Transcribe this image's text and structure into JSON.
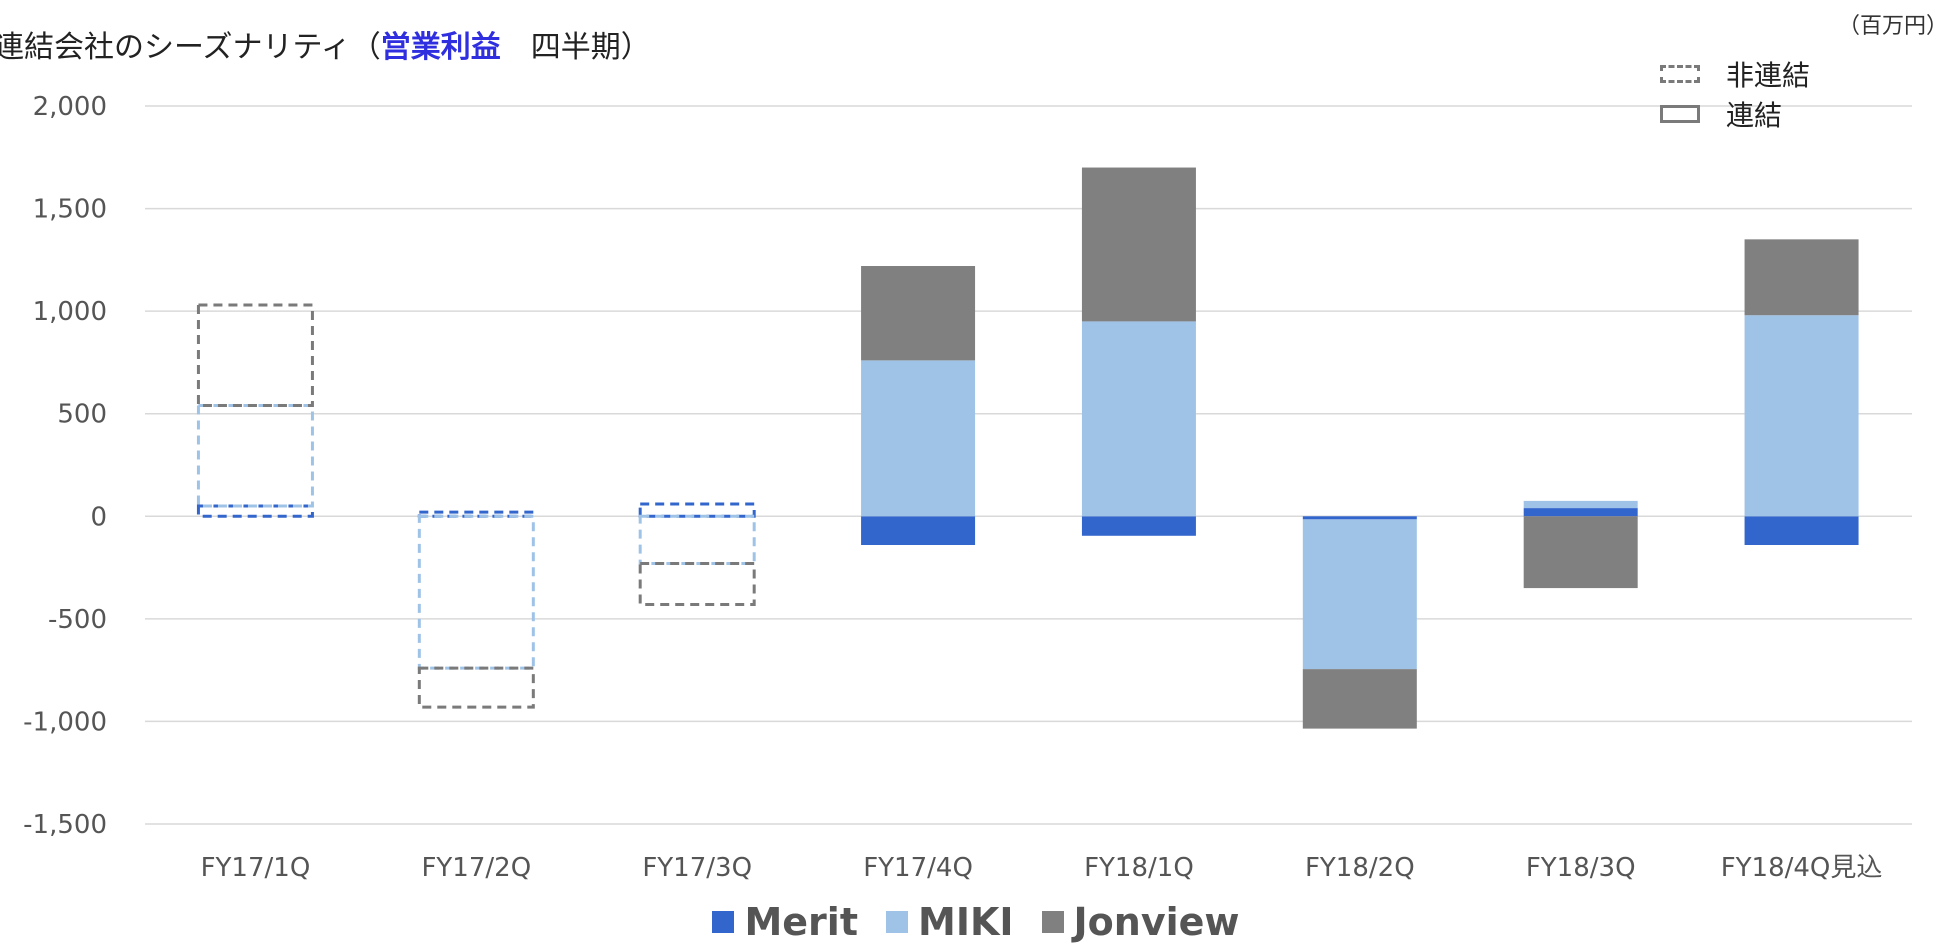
{
  "header": {
    "title_pre": "連結会社のシーズナリティ（",
    "title_highlight": "営業利益",
    "title_post": "　四半期）",
    "unit": "（百万円）"
  },
  "legend_box": {
    "nonconsolidated": "非連結",
    "consolidated": "連結"
  },
  "chart_data": {
    "type": "bar",
    "stacked": true,
    "categories": [
      "FY17/1Q",
      "FY17/2Q",
      "FY17/3Q",
      "FY17/4Q",
      "FY18/1Q",
      "FY18/2Q",
      "FY18/3Q",
      "FY18/4Q見込"
    ],
    "ylim": [
      -1500,
      2000
    ],
    "yticks": [
      2000,
      1500,
      1000,
      500,
      0,
      -500,
      -1000,
      -1500
    ],
    "ytick_labels": [
      "2,000",
      "1,500",
      "1,000",
      "500",
      "0",
      "-500",
      "-1,000",
      "-1,500"
    ],
    "grid": true,
    "legend_position": "bottom",
    "consolidated_from_index": 3,
    "colors": {
      "Merit": "#3366cc",
      "MIKI": "#9fc3e7",
      "Jonview": "#808080",
      "box": "#7a7a7a"
    },
    "series": [
      {
        "name": "Merit",
        "values": [
          50,
          20,
          60,
          -140,
          -95,
          -15,
          40,
          -140
        ]
      },
      {
        "name": "MIKI",
        "values": [
          490,
          -740,
          -230,
          760,
          950,
          -730,
          35,
          980
        ]
      },
      {
        "name": "Jonview",
        "values": [
          490,
          -190,
          -200,
          460,
          750,
          -290,
          -350,
          370
        ]
      }
    ]
  }
}
